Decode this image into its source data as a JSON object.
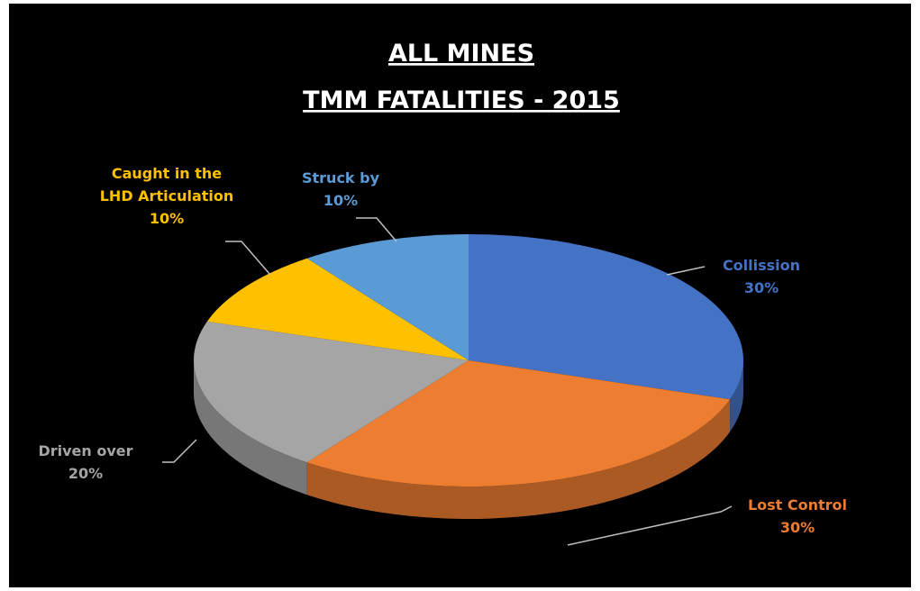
{
  "chart_data": {
    "type": "pie3d",
    "title": [
      "ALL MINES",
      "TMM FATALITIES - 2015"
    ],
    "categories": [
      "Collission",
      "Lost Control",
      "Driven over",
      "Caught in the LHD Articulation",
      "Struck by"
    ],
    "values": [
      30,
      30,
      20,
      10,
      10
    ],
    "value_labels": [
      "30%",
      "30%",
      "20%",
      "10%",
      "10%"
    ],
    "colors": [
      "#4472c4",
      "#ed7d31",
      "#a5a5a5",
      "#ffc000",
      "#5b9bd5"
    ]
  }
}
